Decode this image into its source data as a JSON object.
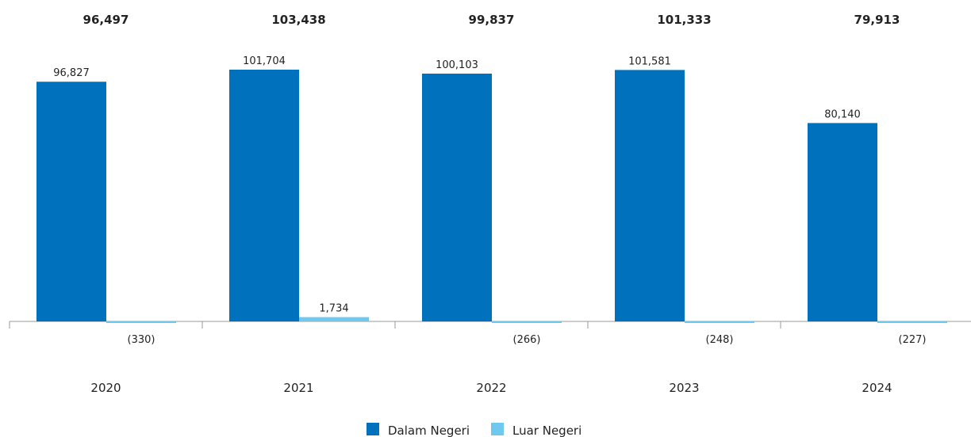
{
  "chart_data": {
    "type": "bar",
    "categories": [
      "2020",
      "2021",
      "2022",
      "2023",
      "2024"
    ],
    "totals": [
      "96,497",
      "103,438",
      "99,837",
      "101,333",
      "79,913"
    ],
    "series": [
      {
        "name": "Dalam Negeri",
        "color": "#0071BC",
        "values": [
          96827,
          101704,
          100103,
          101581,
          80140
        ],
        "labels": [
          "96,827",
          "101,704",
          "100,103",
          "101,581",
          "80,140"
        ]
      },
      {
        "name": "Luar Negeri",
        "color": "#6FC8EE",
        "values": [
          -330,
          1734,
          -266,
          -248,
          -227
        ],
        "labels": [
          "(330)",
          "1,734",
          "(266)",
          "(248)",
          "(227)"
        ]
      }
    ],
    "title": "",
    "xlabel": "",
    "ylabel": "",
    "grid": false,
    "legend": "bottom-center"
  }
}
